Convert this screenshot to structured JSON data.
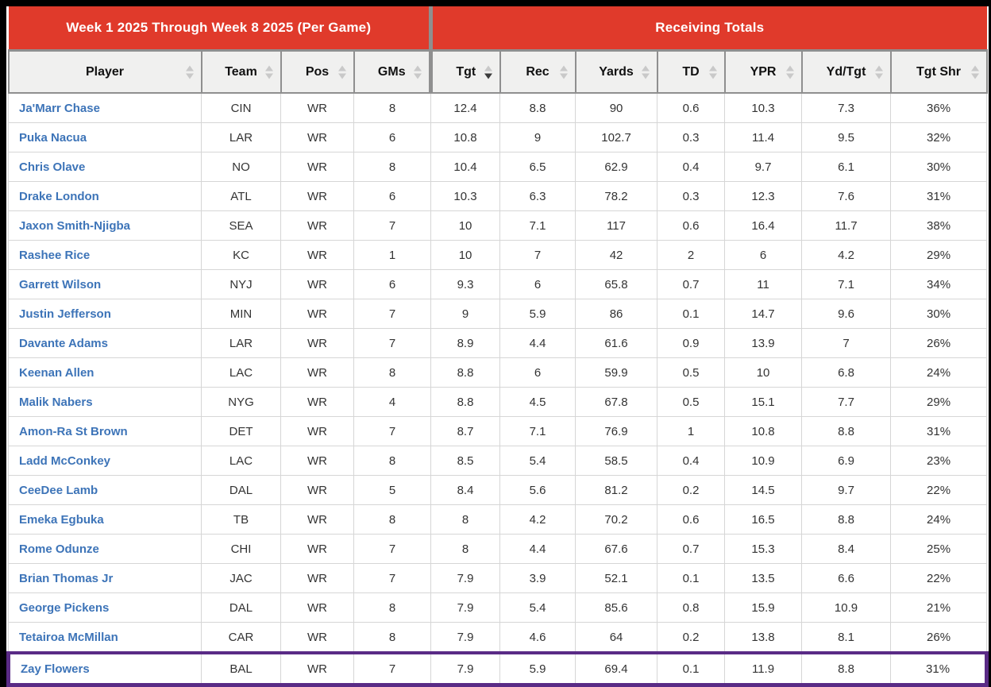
{
  "header": {
    "left_title": "Week 1 2025 Through Week 8 2025 (Per Game)",
    "right_title": "Receiving Totals"
  },
  "colors": {
    "banner_red": "#E03A2B",
    "player_link_blue": "#3D74B8",
    "highlight_purple": "#5A2B86",
    "header_bg_gray": "#F0F0EF",
    "header_border_gray": "#8F8F8F"
  },
  "icons": {
    "sort_ascending": "sort-asc-icon",
    "sort_descending": "sort-desc-icon"
  },
  "table": {
    "sorted_by": "Tgt",
    "sort_direction": "desc",
    "highlighted_player": "Zay Flowers",
    "columns": [
      {
        "key": "player",
        "label": "Player",
        "sort": "none"
      },
      {
        "key": "team",
        "label": "Team",
        "sort": "none"
      },
      {
        "key": "pos",
        "label": "Pos",
        "sort": "none"
      },
      {
        "key": "gms",
        "label": "GMs",
        "sort": "none"
      },
      {
        "key": "tgt",
        "label": "Tgt",
        "sort": "desc"
      },
      {
        "key": "rec",
        "label": "Rec",
        "sort": "none"
      },
      {
        "key": "yards",
        "label": "Yards",
        "sort": "none"
      },
      {
        "key": "td",
        "label": "TD",
        "sort": "none"
      },
      {
        "key": "ypr",
        "label": "YPR",
        "sort": "none"
      },
      {
        "key": "ydtgt",
        "label": "Yd/Tgt",
        "sort": "none"
      },
      {
        "key": "tgtshr",
        "label": "Tgt Shr",
        "sort": "none"
      }
    ],
    "rows": [
      {
        "player": "Ja'Marr Chase",
        "team": "CIN",
        "pos": "WR",
        "gms": "8",
        "tgt": "12.4",
        "rec": "8.8",
        "yards": "90",
        "td": "0.6",
        "ypr": "10.3",
        "ydtgt": "7.3",
        "tgtshr": "36%",
        "highlight": false
      },
      {
        "player": "Puka Nacua",
        "team": "LAR",
        "pos": "WR",
        "gms": "6",
        "tgt": "10.8",
        "rec": "9",
        "yards": "102.7",
        "td": "0.3",
        "ypr": "11.4",
        "ydtgt": "9.5",
        "tgtshr": "32%",
        "highlight": false
      },
      {
        "player": "Chris Olave",
        "team": "NO",
        "pos": "WR",
        "gms": "8",
        "tgt": "10.4",
        "rec": "6.5",
        "yards": "62.9",
        "td": "0.4",
        "ypr": "9.7",
        "ydtgt": "6.1",
        "tgtshr": "30%",
        "highlight": false
      },
      {
        "player": "Drake London",
        "team": "ATL",
        "pos": "WR",
        "gms": "6",
        "tgt": "10.3",
        "rec": "6.3",
        "yards": "78.2",
        "td": "0.3",
        "ypr": "12.3",
        "ydtgt": "7.6",
        "tgtshr": "31%",
        "highlight": false
      },
      {
        "player": "Jaxon Smith-Njigba",
        "team": "SEA",
        "pos": "WR",
        "gms": "7",
        "tgt": "10",
        "rec": "7.1",
        "yards": "117",
        "td": "0.6",
        "ypr": "16.4",
        "ydtgt": "11.7",
        "tgtshr": "38%",
        "highlight": false
      },
      {
        "player": "Rashee Rice",
        "team": "KC",
        "pos": "WR",
        "gms": "1",
        "tgt": "10",
        "rec": "7",
        "yards": "42",
        "td": "2",
        "ypr": "6",
        "ydtgt": "4.2",
        "tgtshr": "29%",
        "highlight": false
      },
      {
        "player": "Garrett Wilson",
        "team": "NYJ",
        "pos": "WR",
        "gms": "6",
        "tgt": "9.3",
        "rec": "6",
        "yards": "65.8",
        "td": "0.7",
        "ypr": "11",
        "ydtgt": "7.1",
        "tgtshr": "34%",
        "highlight": false
      },
      {
        "player": "Justin Jefferson",
        "team": "MIN",
        "pos": "WR",
        "gms": "7",
        "tgt": "9",
        "rec": "5.9",
        "yards": "86",
        "td": "0.1",
        "ypr": "14.7",
        "ydtgt": "9.6",
        "tgtshr": "30%",
        "highlight": false
      },
      {
        "player": "Davante Adams",
        "team": "LAR",
        "pos": "WR",
        "gms": "7",
        "tgt": "8.9",
        "rec": "4.4",
        "yards": "61.6",
        "td": "0.9",
        "ypr": "13.9",
        "ydtgt": "7",
        "tgtshr": "26%",
        "highlight": false
      },
      {
        "player": "Keenan Allen",
        "team": "LAC",
        "pos": "WR",
        "gms": "8",
        "tgt": "8.8",
        "rec": "6",
        "yards": "59.9",
        "td": "0.5",
        "ypr": "10",
        "ydtgt": "6.8",
        "tgtshr": "24%",
        "highlight": false
      },
      {
        "player": "Malik Nabers",
        "team": "NYG",
        "pos": "WR",
        "gms": "4",
        "tgt": "8.8",
        "rec": "4.5",
        "yards": "67.8",
        "td": "0.5",
        "ypr": "15.1",
        "ydtgt": "7.7",
        "tgtshr": "29%",
        "highlight": false
      },
      {
        "player": "Amon-Ra St Brown",
        "team": "DET",
        "pos": "WR",
        "gms": "7",
        "tgt": "8.7",
        "rec": "7.1",
        "yards": "76.9",
        "td": "1",
        "ypr": "10.8",
        "ydtgt": "8.8",
        "tgtshr": "31%",
        "highlight": false
      },
      {
        "player": "Ladd McConkey",
        "team": "LAC",
        "pos": "WR",
        "gms": "8",
        "tgt": "8.5",
        "rec": "5.4",
        "yards": "58.5",
        "td": "0.4",
        "ypr": "10.9",
        "ydtgt": "6.9",
        "tgtshr": "23%",
        "highlight": false
      },
      {
        "player": "CeeDee Lamb",
        "team": "DAL",
        "pos": "WR",
        "gms": "5",
        "tgt": "8.4",
        "rec": "5.6",
        "yards": "81.2",
        "td": "0.2",
        "ypr": "14.5",
        "ydtgt": "9.7",
        "tgtshr": "22%",
        "highlight": false
      },
      {
        "player": "Emeka Egbuka",
        "team": "TB",
        "pos": "WR",
        "gms": "8",
        "tgt": "8",
        "rec": "4.2",
        "yards": "70.2",
        "td": "0.6",
        "ypr": "16.5",
        "ydtgt": "8.8",
        "tgtshr": "24%",
        "highlight": false
      },
      {
        "player": "Rome Odunze",
        "team": "CHI",
        "pos": "WR",
        "gms": "7",
        "tgt": "8",
        "rec": "4.4",
        "yards": "67.6",
        "td": "0.7",
        "ypr": "15.3",
        "ydtgt": "8.4",
        "tgtshr": "25%",
        "highlight": false
      },
      {
        "player": "Brian Thomas Jr",
        "team": "JAC",
        "pos": "WR",
        "gms": "7",
        "tgt": "7.9",
        "rec": "3.9",
        "yards": "52.1",
        "td": "0.1",
        "ypr": "13.5",
        "ydtgt": "6.6",
        "tgtshr": "22%",
        "highlight": false
      },
      {
        "player": "George Pickens",
        "team": "DAL",
        "pos": "WR",
        "gms": "8",
        "tgt": "7.9",
        "rec": "5.4",
        "yards": "85.6",
        "td": "0.8",
        "ypr": "15.9",
        "ydtgt": "10.9",
        "tgtshr": "21%",
        "highlight": false
      },
      {
        "player": "Tetairoa McMillan",
        "team": "CAR",
        "pos": "WR",
        "gms": "8",
        "tgt": "7.9",
        "rec": "4.6",
        "yards": "64",
        "td": "0.2",
        "ypr": "13.8",
        "ydtgt": "8.1",
        "tgtshr": "26%",
        "highlight": false
      },
      {
        "player": "Zay Flowers",
        "team": "BAL",
        "pos": "WR",
        "gms": "7",
        "tgt": "7.9",
        "rec": "5.9",
        "yards": "69.4",
        "td": "0.1",
        "ypr": "11.9",
        "ydtgt": "8.8",
        "tgtshr": "31%",
        "highlight": true
      }
    ]
  }
}
